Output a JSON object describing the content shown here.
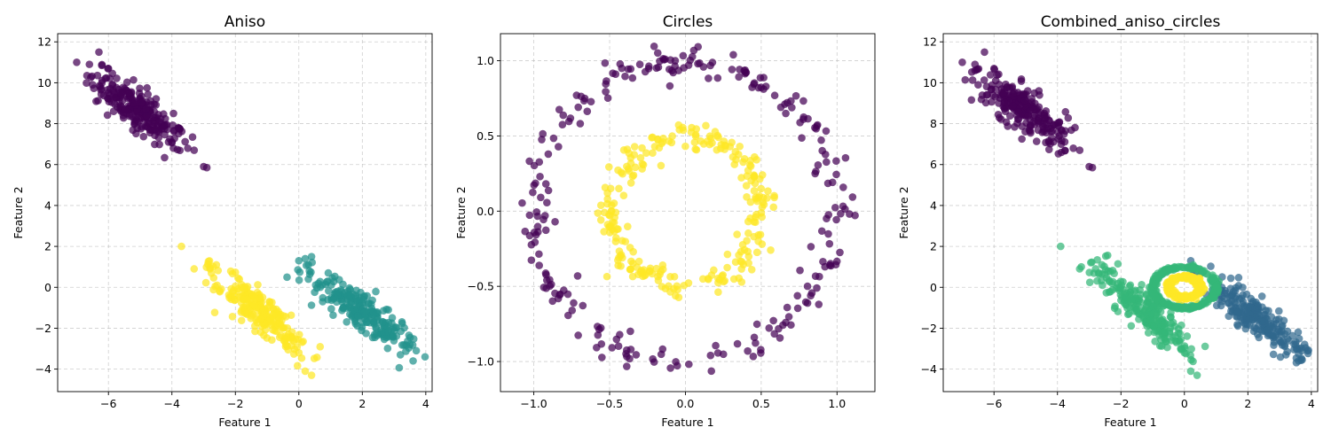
{
  "colors": {
    "purple": "#440154",
    "teal": "#21918c",
    "yellow": "#fde725",
    "blue": "#31688e",
    "green": "#35b779",
    "grid": "#b0b0b0"
  },
  "chart_data": [
    {
      "type": "scatter",
      "title": "Aniso",
      "xlabel": "Feature 1",
      "ylabel": "Feature 2",
      "xlim": [
        -7.6,
        4.2
      ],
      "ylim": [
        -5.1,
        12.4
      ],
      "xticks": [
        -6,
        -4,
        -2,
        0,
        2,
        4
      ],
      "yticks": [
        -4,
        -2,
        0,
        2,
        4,
        6,
        8,
        10,
        12
      ],
      "grid": true,
      "series": [
        {
          "color": "purple",
          "shape": "band",
          "points": [
            [
              -7.0,
              11.0
            ],
            [
              -6.6,
              10.9
            ],
            [
              -6.3,
              11.5
            ],
            [
              -6.5,
              9.9
            ],
            [
              -6.0,
              10.7
            ],
            [
              -5.6,
              9.5
            ],
            [
              -5.2,
              9.0
            ],
            [
              -4.8,
              8.4
            ],
            [
              -4.4,
              8.1
            ],
            [
              -4.0,
              7.1
            ],
            [
              -3.8,
              7.8
            ],
            [
              -3.5,
              6.8
            ],
            [
              -3.3,
              6.7
            ],
            [
              -3.0,
              5.9
            ],
            [
              -2.9,
              5.85
            ]
          ],
          "line_start": [
            -6.2,
            10.2
          ],
          "line_end": [
            -4.0,
            7.2
          ],
          "spread": 0.35,
          "count": 240
        },
        {
          "color": "teal",
          "shape": "band",
          "points": [
            [
              0.0,
              1.3
            ],
            [
              0.2,
              1.4
            ],
            [
              0.4,
              1.5
            ],
            [
              0.3,
              1.1
            ],
            [
              0.3,
              0.4
            ],
            [
              3.5,
              -2.8
            ],
            [
              3.7,
              -3.1
            ],
            [
              3.2,
              -3.3
            ],
            [
              3.6,
              -3.6
            ]
          ],
          "line_start": [
            0.6,
            0.5
          ],
          "line_end": [
            3.4,
            -3.0
          ],
          "spread": 0.3,
          "count": 230
        },
        {
          "color": "yellow",
          "shape": "band",
          "points": [
            [
              -3.7,
              2.0
            ],
            [
              -3.3,
              0.9
            ],
            [
              -2.8,
              0.9
            ],
            [
              -2.6,
              1.1
            ],
            [
              0.2,
              -4.1
            ],
            [
              0.4,
              -4.3
            ],
            [
              0.0,
              -3.2
            ]
          ],
          "line_start": [
            -2.5,
            0.7
          ],
          "line_end": [
            0.0,
            -3.0
          ],
          "spread": 0.3,
          "count": 230
        }
      ]
    },
    {
      "type": "scatter",
      "title": "Circles",
      "xlabel": "Feature 1",
      "ylabel": "Feature 2",
      "xlim": [
        -1.22,
        1.25
      ],
      "ylim": [
        -1.2,
        1.18
      ],
      "xticks": [
        -1.0,
        -0.5,
        0.0,
        0.5,
        1.0
      ],
      "yticks": [
        -1.0,
        -0.5,
        0.0,
        0.5,
        1.0
      ],
      "grid": true,
      "series": [
        {
          "color": "purple",
          "shape": "ring",
          "center": [
            0,
            0
          ],
          "radius": 1.0,
          "spread": 0.05,
          "count": 250
        },
        {
          "color": "yellow",
          "shape": "ring",
          "center": [
            0,
            0
          ],
          "radius": 0.5,
          "spread": 0.05,
          "count": 250
        }
      ]
    },
    {
      "type": "scatter",
      "title": "Combined_aniso_circles",
      "xlabel": "Feature 1",
      "ylabel": "Feature 2",
      "xlim": [
        -7.6,
        4.2
      ],
      "ylim": [
        -5.1,
        12.4
      ],
      "xticks": [
        -6,
        -4,
        -2,
        0,
        2,
        4
      ],
      "yticks": [
        -4,
        -2,
        0,
        2,
        4,
        6,
        8,
        10,
        12
      ],
      "grid": true,
      "series": [
        {
          "color": "purple",
          "shape": "band",
          "points": [
            [
              -7.0,
              11.0
            ],
            [
              -6.6,
              10.9
            ],
            [
              -6.3,
              11.5
            ],
            [
              -6.5,
              9.9
            ],
            [
              -6.0,
              10.7
            ],
            [
              -3.5,
              6.8
            ],
            [
              -3.3,
              6.7
            ],
            [
              -3.0,
              5.9
            ],
            [
              -2.9,
              5.85
            ]
          ],
          "line_start": [
            -6.2,
            10.2
          ],
          "line_end": [
            -4.0,
            7.2
          ],
          "spread": 0.35,
          "count": 240
        },
        {
          "color": "blue",
          "shape": "band",
          "points": [
            [
              0.2,
              1.3
            ],
            [
              3.5,
              -2.8
            ],
            [
              3.7,
              -3.1
            ],
            [
              3.2,
              -3.3
            ],
            [
              3.6,
              -3.6
            ]
          ],
          "line_start": [
            0.9,
            0.3
          ],
          "line_end": [
            3.4,
            -3.0
          ],
          "spread": 0.3,
          "count": 230
        },
        {
          "color": "green",
          "shape": "band",
          "points": [
            [
              -3.9,
              2.0
            ],
            [
              -3.3,
              0.9
            ],
            [
              -2.8,
              0.9
            ],
            [
              -2.6,
              1.1
            ],
            [
              0.2,
              -4.1
            ],
            [
              0.4,
              -4.3
            ],
            [
              0.0,
              -3.2
            ]
          ],
          "line_start": [
            -2.5,
            0.7
          ],
          "line_end": [
            0.0,
            -3.0
          ],
          "spread": 0.3,
          "count": 230
        },
        {
          "color": "green",
          "shape": "ring",
          "center": [
            0,
            0
          ],
          "radius": 1.0,
          "spread": 0.05,
          "count": 250
        },
        {
          "color": "yellow",
          "shape": "ring",
          "center": [
            0,
            0
          ],
          "radius": 0.5,
          "spread": 0.05,
          "count": 250
        }
      ]
    }
  ]
}
